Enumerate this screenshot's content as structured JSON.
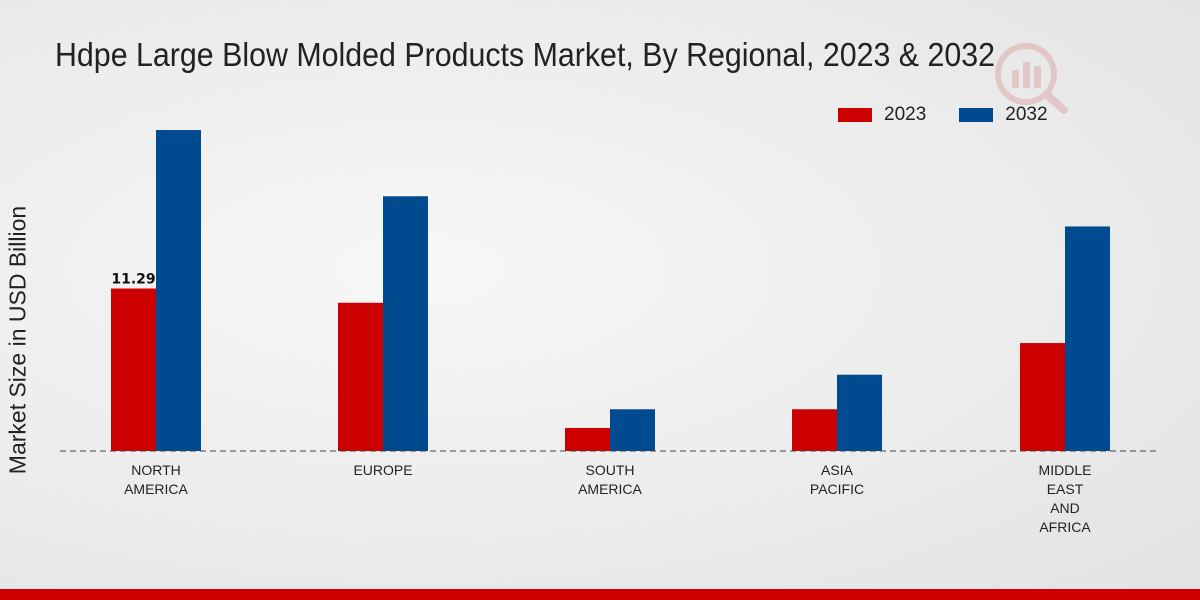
{
  "title": "Hdpe Large Blow Molded Products Market, By Regional, 2023 & 2032",
  "watermark_icon": "logo-watermark-icon",
  "colors": {
    "series_2023": "#cc0000",
    "series_2032": "#004a8f",
    "bottom_bar": "#cc0000"
  },
  "chart_data": {
    "type": "bar",
    "title": "Hdpe Large Blow Molded Products Market, By Regional, 2023 & 2032",
    "ylabel": "Market Size in USD Billion",
    "xlabel": "",
    "categories": [
      [
        "NORTH",
        "AMERICA"
      ],
      [
        "EUROPE"
      ],
      [
        "SOUTH",
        "AMERICA"
      ],
      [
        "ASIA",
        "PACIFIC"
      ],
      [
        "MIDDLE",
        "EAST",
        "AND",
        "AFRICA"
      ]
    ],
    "series": [
      {
        "name": "2023",
        "color": "#cc0000",
        "values": [
          11.29,
          10.3,
          1.6,
          2.9,
          7.5
        ]
      },
      {
        "name": "2032",
        "color": "#004a8f",
        "values": [
          22.3,
          17.7,
          2.9,
          5.3,
          15.6
        ]
      }
    ],
    "data_labels": [
      {
        "series": "2023",
        "category_index": 0,
        "text": "11.29"
      }
    ],
    "ylim": [
      0,
      28
    ],
    "baseline": "dashed",
    "legend_position": "top-right",
    "grid": false
  }
}
